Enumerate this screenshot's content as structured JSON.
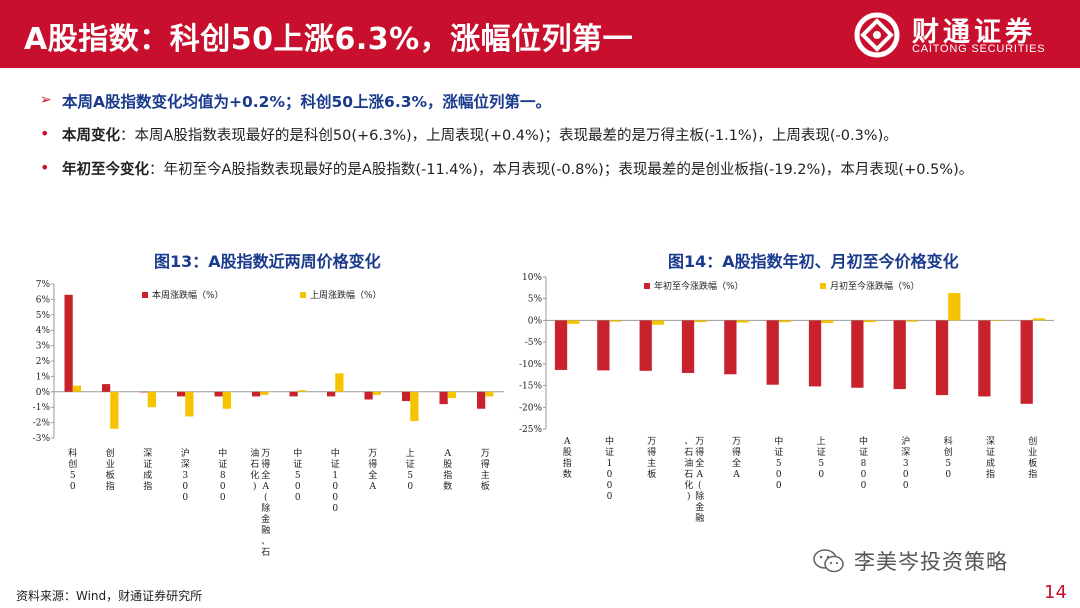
{
  "header": {
    "title": "A股指数：科创50上涨6.3%，涨幅位列第一"
  },
  "logo": {
    "name_cn": "财通证券",
    "name_en": "CAITONG SECURITIES"
  },
  "summary": {
    "headline": "本周A股指数变化均值为+0.2%；科创50上涨6.3%，涨幅位列第一。",
    "weekly": {
      "key": "本周变化",
      "text": "：本周A股指数表现最好的是科创50(+6.3%)，上周表现(+0.4%)；表现最差的是万得主板(-1.1%)，上周表现(-0.3%)。"
    },
    "ytd": {
      "key": "年初至今变化",
      "text": "：年初至今A股指数表现最好的是A股指数(-11.4%)，本月表现(-0.8%)；表现最差的是创业板指(-19.2%)，本月表现(+0.5%)。"
    }
  },
  "chart_data": [
    {
      "type": "bar",
      "title": "图13：A股指数近两周价格变化",
      "categories": [
        "科创50",
        "创业板指",
        "深证成指",
        "沪深300",
        "中证800",
        "万得全A(除金融、石油石化)",
        "中证500",
        "中证1000",
        "万得全A",
        "上证50",
        "A股指数",
        "万得主板"
      ],
      "series": [
        {
          "name": "本周涨跌幅（%）",
          "color": "#c8232c",
          "values": [
            6.3,
            0.5,
            0.0,
            -0.3,
            -0.3,
            -0.3,
            -0.3,
            -0.3,
            -0.5,
            -0.6,
            -0.8,
            -1.1
          ]
        },
        {
          "name": "上周涨跌幅（%）",
          "color": "#f5c400",
          "values": [
            0.4,
            -2.4,
            -1.0,
            -1.6,
            -1.1,
            -0.2,
            0.1,
            1.2,
            -0.2,
            -1.9,
            -0.4,
            -0.3
          ]
        }
      ],
      "ylim": [
        -3,
        7
      ],
      "yticks": [
        "7%",
        "6%",
        "5%",
        "4%",
        "3%",
        "2%",
        "1%",
        "0%",
        "-1%",
        "-2%",
        "-3%"
      ],
      "legend": "top",
      "grid": false
    },
    {
      "type": "bar",
      "title": "图14：A股指数年初、月初至今价格变化",
      "categories": [
        "A股指数",
        "中证1000",
        "万得主板",
        "万得全A(除金融、石油石化)",
        "万得全A",
        "中证500",
        "上证50",
        "中证800",
        "沪深300",
        "科创50",
        "深证成指",
        "创业板指"
      ],
      "series": [
        {
          "name": "年初至今涨跌幅（%）",
          "color": "#c8232c",
          "values": [
            -11.4,
            -11.5,
            -11.6,
            -12.1,
            -12.4,
            -14.8,
            -15.2,
            -15.5,
            -15.8,
            -17.2,
            -17.5,
            -19.2
          ]
        },
        {
          "name": "月初至今涨跌幅（%）",
          "color": "#f5c400",
          "values": [
            -0.8,
            -0.3,
            -1.0,
            -0.4,
            -0.5,
            -0.4,
            -0.6,
            -0.4,
            -0.3,
            6.3,
            -0.1,
            0.5
          ]
        }
      ],
      "ylim": [
        -25,
        10
      ],
      "yticks": [
        "10%",
        "5%",
        "0%",
        "-5%",
        "-10%",
        "-15%",
        "-20%",
        "-25%"
      ],
      "legend": "top",
      "grid": false
    }
  ],
  "footer": {
    "source": "资料来源：Wind，财通证券研究所",
    "watermark": "李美岑投资策略",
    "page": "14"
  },
  "colors": {
    "brand_red": "#c8102e",
    "title_blue": "#1a3a8c",
    "bar_red": "#c8232c",
    "bar_yellow": "#f5c400"
  },
  "icons": {
    "logo": "caitong-logo-icon",
    "watermark": "wechat-icon",
    "bullet_arrow": "arrow-right-icon"
  }
}
